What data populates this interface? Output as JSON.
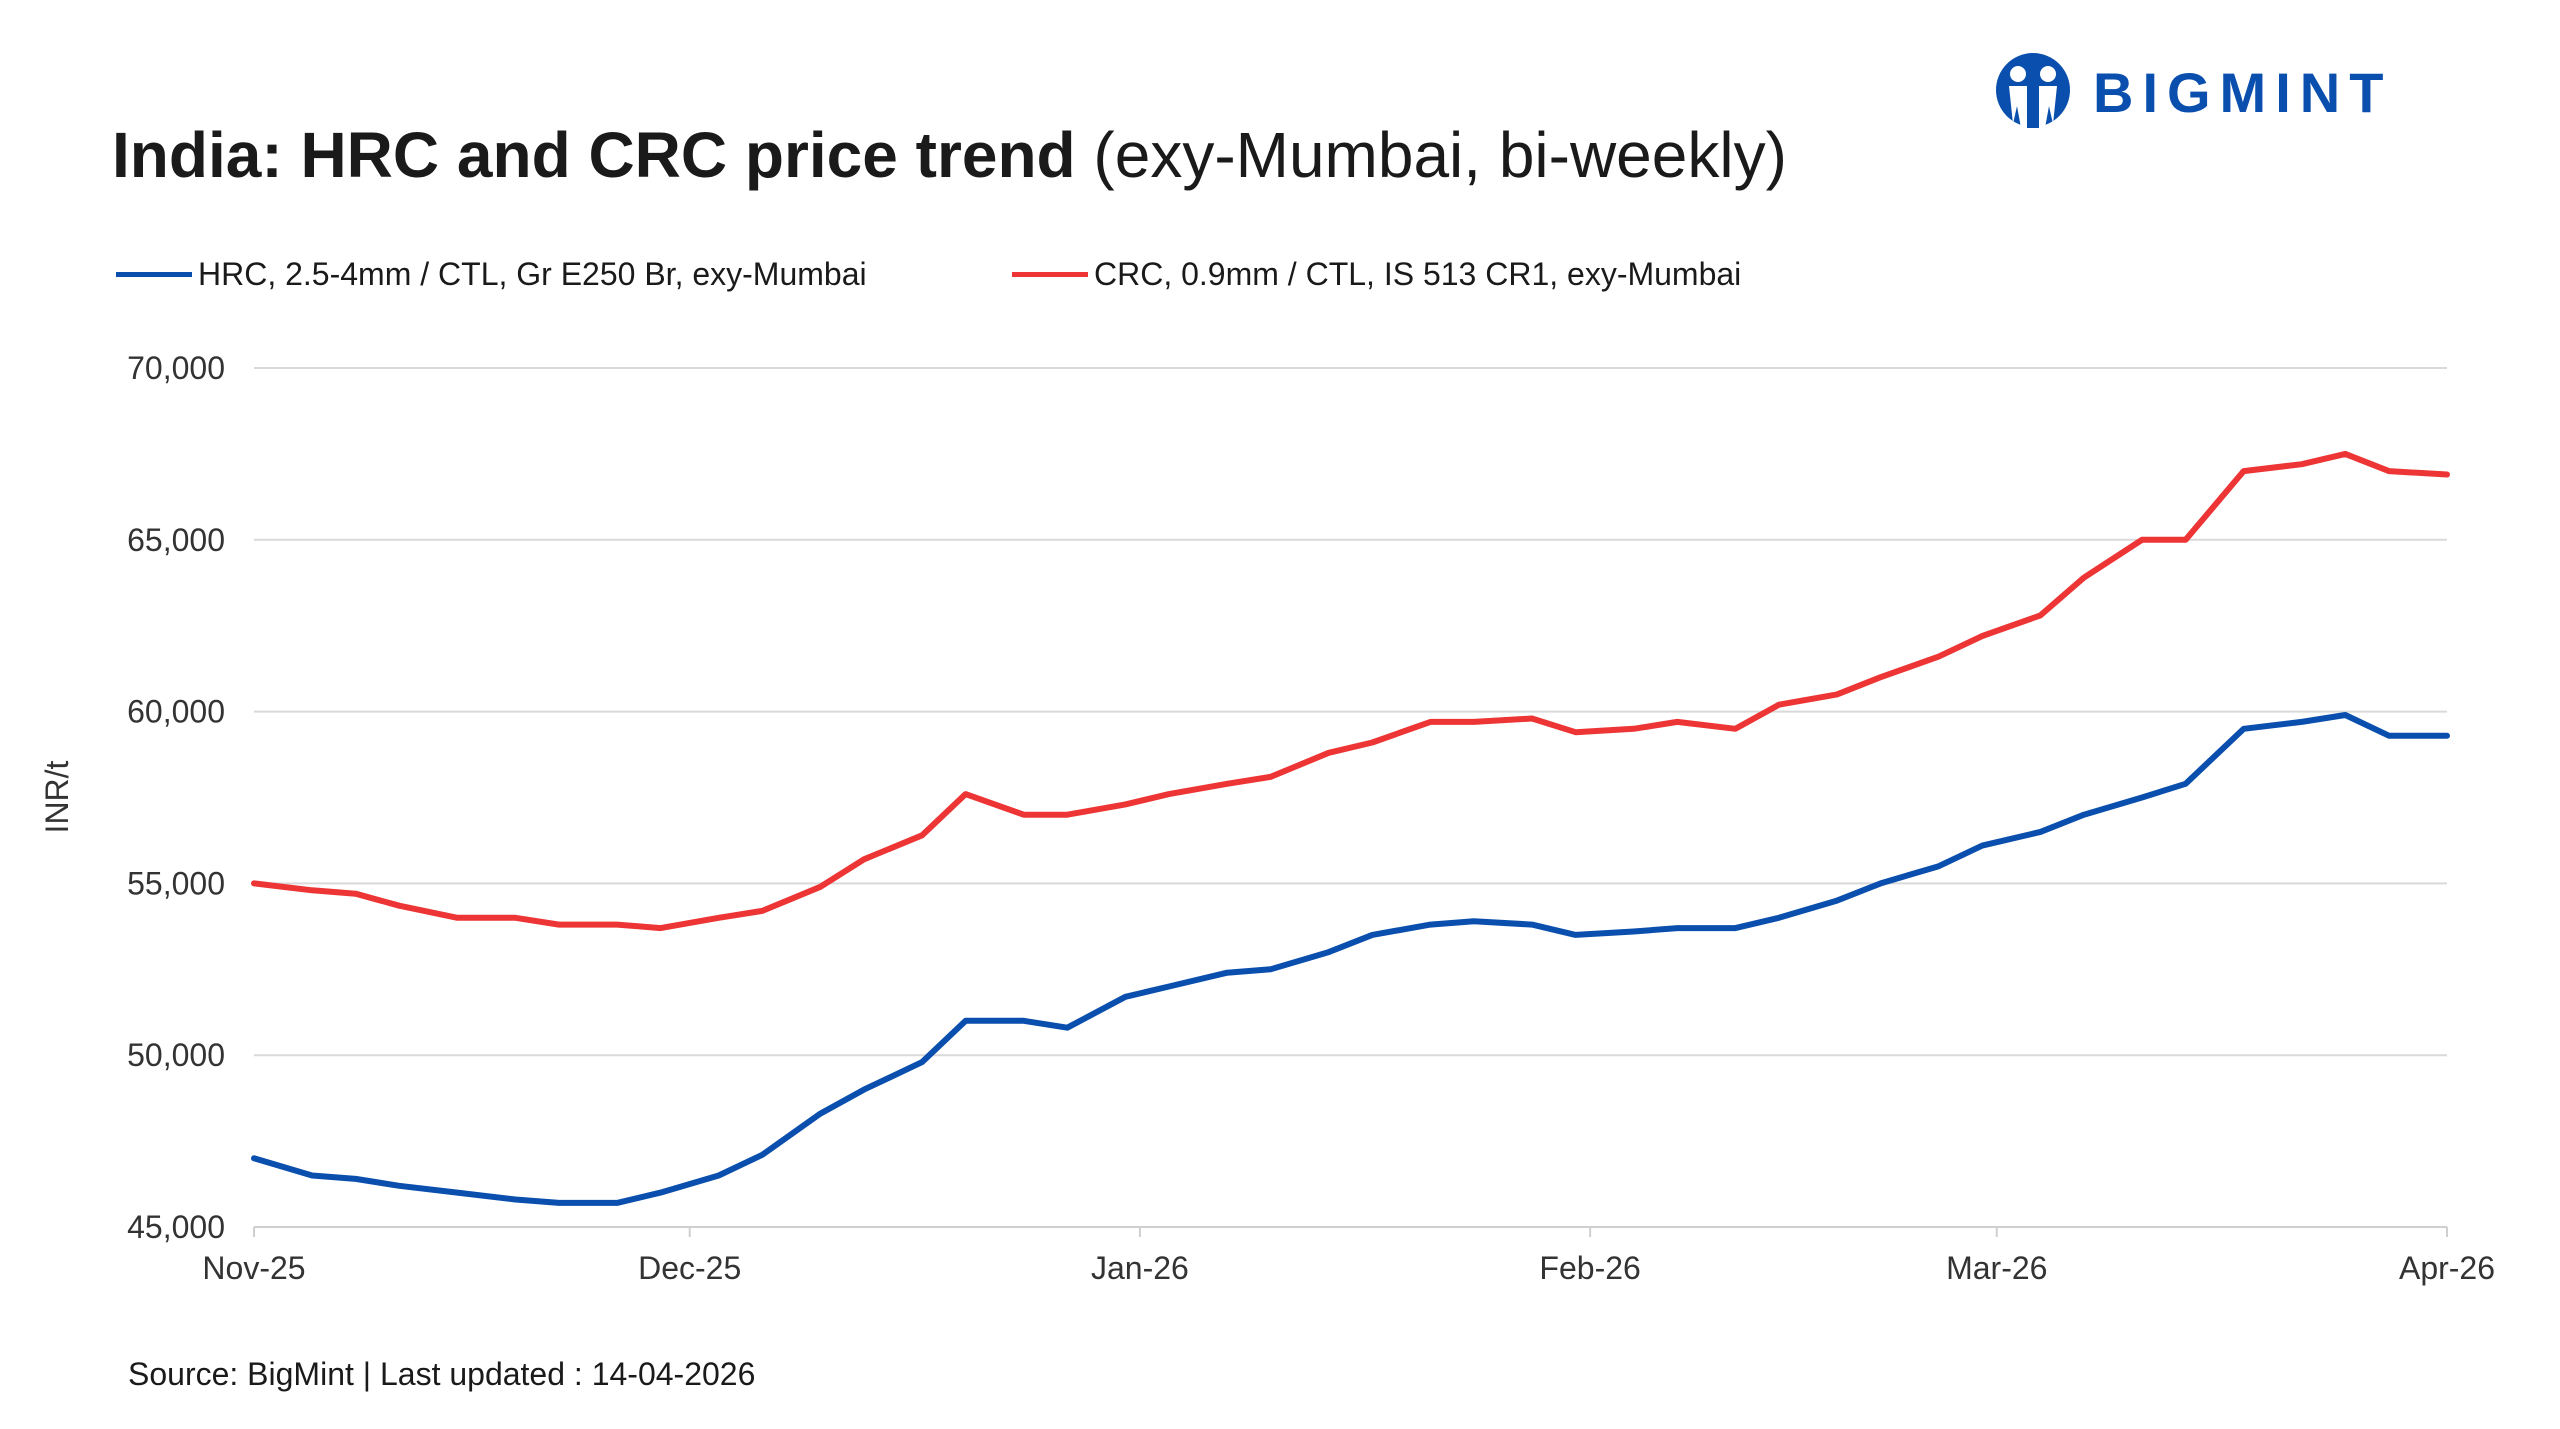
{
  "chart_data": {
    "type": "line",
    "title": "India: HRC and CRC price trend",
    "subtitle": "(exy-Mumbai, bi-weekly)",
    "ylabel": "INR/t",
    "xlabel": "",
    "ylim": [
      45000,
      70000
    ],
    "yticks": [
      "45,000",
      "50,000",
      "55,000",
      "60,000",
      "65,000",
      "70,000"
    ],
    "ytick_values": [
      45000,
      50000,
      55000,
      60000,
      65000,
      70000
    ],
    "xlim": [
      "2025-11-01",
      "2026-04-01"
    ],
    "xticks": [
      {
        "label": "Nov-25",
        "date": "2025-11-01"
      },
      {
        "label": "Dec-25",
        "date": "2025-12-01"
      },
      {
        "label": "Jan-26",
        "date": "2026-01-01"
      },
      {
        "label": "Feb-26",
        "date": "2026-02-01"
      },
      {
        "label": "Mar-26",
        "date": "2026-03-01"
      },
      {
        "label": "Apr-26",
        "date": "2026-04-01"
      }
    ],
    "grid": "horizontal",
    "legend_position": "top-left",
    "x": [
      "2025-11-01",
      "2025-11-05",
      "2025-11-08",
      "2025-11-11",
      "2025-11-15",
      "2025-11-19",
      "2025-11-22",
      "2025-11-26",
      "2025-11-29",
      "2025-12-03",
      "2025-12-06",
      "2025-12-10",
      "2025-12-13",
      "2025-12-17",
      "2025-12-20",
      "2025-12-24",
      "2025-12-27",
      "2025-12-31",
      "2026-01-03",
      "2026-01-07",
      "2026-01-10",
      "2026-01-14",
      "2026-01-17",
      "2026-01-21",
      "2026-01-24",
      "2026-01-28",
      "2026-01-31",
      "2026-02-04",
      "2026-02-07",
      "2026-02-11",
      "2026-02-14",
      "2026-02-18",
      "2026-02-21",
      "2026-02-25",
      "2026-02-28",
      "2026-03-04",
      "2026-03-07",
      "2026-03-11",
      "2026-03-14",
      "2026-03-18",
      "2026-03-22",
      "2026-03-25",
      "2026-03-28",
      "2026-04-01"
    ],
    "series": [
      {
        "name": "HRC, 2.5-4mm / CTL, Gr E250 Br, exy-Mumbai",
        "color": "#0a4fad",
        "values": [
          47000,
          46500,
          46400,
          46200,
          46000,
          45800,
          45700,
          45700,
          46000,
          46500,
          47100,
          48300,
          49000,
          49800,
          51000,
          51000,
          50800,
          51700,
          52000,
          52400,
          52500,
          53000,
          53500,
          53800,
          53900,
          53800,
          53500,
          53600,
          53700,
          53700,
          54000,
          54500,
          55000,
          55500,
          56100,
          56500,
          57000,
          57500,
          57900,
          59500,
          59700,
          59900,
          59300,
          59300
        ]
      },
      {
        "name": "CRC, 0.9mm / CTL, IS 513 CR1, exy-Mumbai",
        "color": "#ee3535",
        "values": [
          55000,
          54800,
          54700,
          54350,
          54000,
          54000,
          53800,
          53800,
          53700,
          54000,
          54200,
          54900,
          55700,
          56400,
          57600,
          57000,
          57000,
          57300,
          57600,
          57900,
          58100,
          58800,
          59100,
          59700,
          59700,
          59800,
          59400,
          59500,
          59700,
          59500,
          60200,
          60500,
          61000,
          61600,
          62200,
          62800,
          63900,
          65000,
          65000,
          67000,
          67200,
          67500,
          67000,
          66900
        ]
      }
    ]
  },
  "logo": {
    "text": "BIGMINT",
    "color": "#0a4fad"
  },
  "source": "Source: BigMint | Last updated : 14-04-2026"
}
